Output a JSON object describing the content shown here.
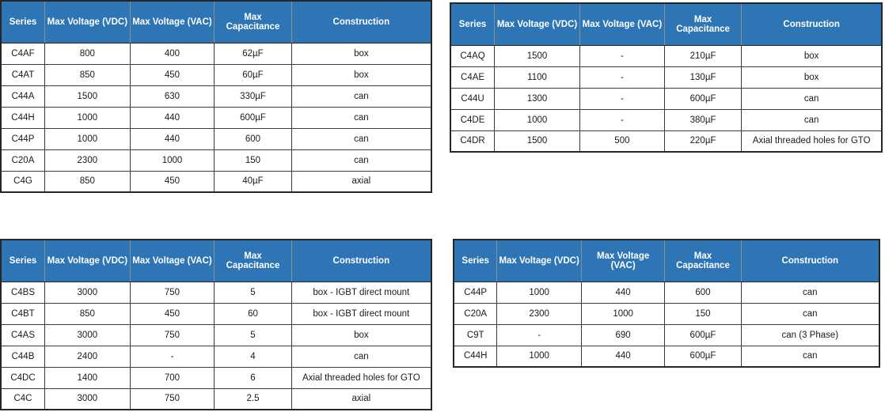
{
  "colors": {
    "header_bg": "#2E75B6",
    "header_text": "#FFFFFF",
    "cell_text": "#1A1A1A",
    "border": "#3B3B3B",
    "page_bg": "#FFFFFF"
  },
  "tables": [
    {
      "name": "capacitor-series-table-top-left",
      "columns": [
        "Series",
        "Max Voltage (VDC)",
        "Max Voltage (VAC)",
        "Max Capacitance",
        "Construction"
      ],
      "rows": [
        [
          "C4AF",
          "800",
          "400",
          "62µF",
          "box"
        ],
        [
          "C4AT",
          "850",
          "450",
          "60µF",
          "box"
        ],
        [
          "C44A",
          "1500",
          "630",
          "330µF",
          "can"
        ],
        [
          "C44H",
          "1000",
          "440",
          "600µF",
          "can"
        ],
        [
          "C44P",
          "1000",
          "440",
          "600",
          "can"
        ],
        [
          "C20A",
          "2300",
          "1000",
          "150",
          "can"
        ],
        [
          "C4G",
          "850",
          "450",
          "40µF",
          "axial"
        ]
      ]
    },
    {
      "name": "capacitor-series-table-top-right",
      "columns": [
        "Series",
        "Max Voltage (VDC)",
        "Max Voltage (VAC)",
        "Max Capacitance",
        "Construction"
      ],
      "rows": [
        [
          "C4AQ",
          "1500",
          "-",
          "210µF",
          "box"
        ],
        [
          "C4AE",
          "1100",
          "-",
          "130µF",
          "box"
        ],
        [
          "C44U",
          "1300",
          "-",
          "600µF",
          "can"
        ],
        [
          "C4DE",
          "1000",
          "-",
          "380µF",
          "can"
        ],
        [
          "C4DR",
          "1500",
          "500",
          "220µF",
          "Axial threaded holes for GTO"
        ]
      ]
    },
    {
      "name": "capacitor-series-table-bottom-left",
      "columns": [
        "Series",
        "Max Voltage (VDC)",
        "Max Voltage (VAC)",
        "Max Capacitance",
        "Construction"
      ],
      "rows": [
        [
          "C4BS",
          "3000",
          "750",
          "5",
          "box - IGBT direct mount"
        ],
        [
          "C4BT",
          "850",
          "450",
          "60",
          "box - IGBT direct mount"
        ],
        [
          "C4AS",
          "3000",
          "750",
          "5",
          "box"
        ],
        [
          "C44B",
          "2400",
          "-",
          "4",
          "can"
        ],
        [
          "C4DC",
          "1400",
          "700",
          "6",
          "Axial threaded holes for GTO"
        ],
        [
          "C4C",
          "3000",
          "750",
          "2.5",
          "axial"
        ]
      ]
    },
    {
      "name": "capacitor-series-table-bottom-right",
      "columns": [
        "Series",
        "Max Voltage (VDC)",
        "Max Voltage (VAC)",
        "Max Capacitance",
        "Construction"
      ],
      "rows": [
        [
          "C44P",
          "1000",
          "440",
          "600",
          "can"
        ],
        [
          "C20A",
          "2300",
          "1000",
          "150",
          "can"
        ],
        [
          "C9T",
          "-",
          "690",
          "600µF",
          "can (3 Phase)"
        ],
        [
          "C44H",
          "1000",
          "440",
          "600µF",
          "can"
        ]
      ]
    }
  ]
}
